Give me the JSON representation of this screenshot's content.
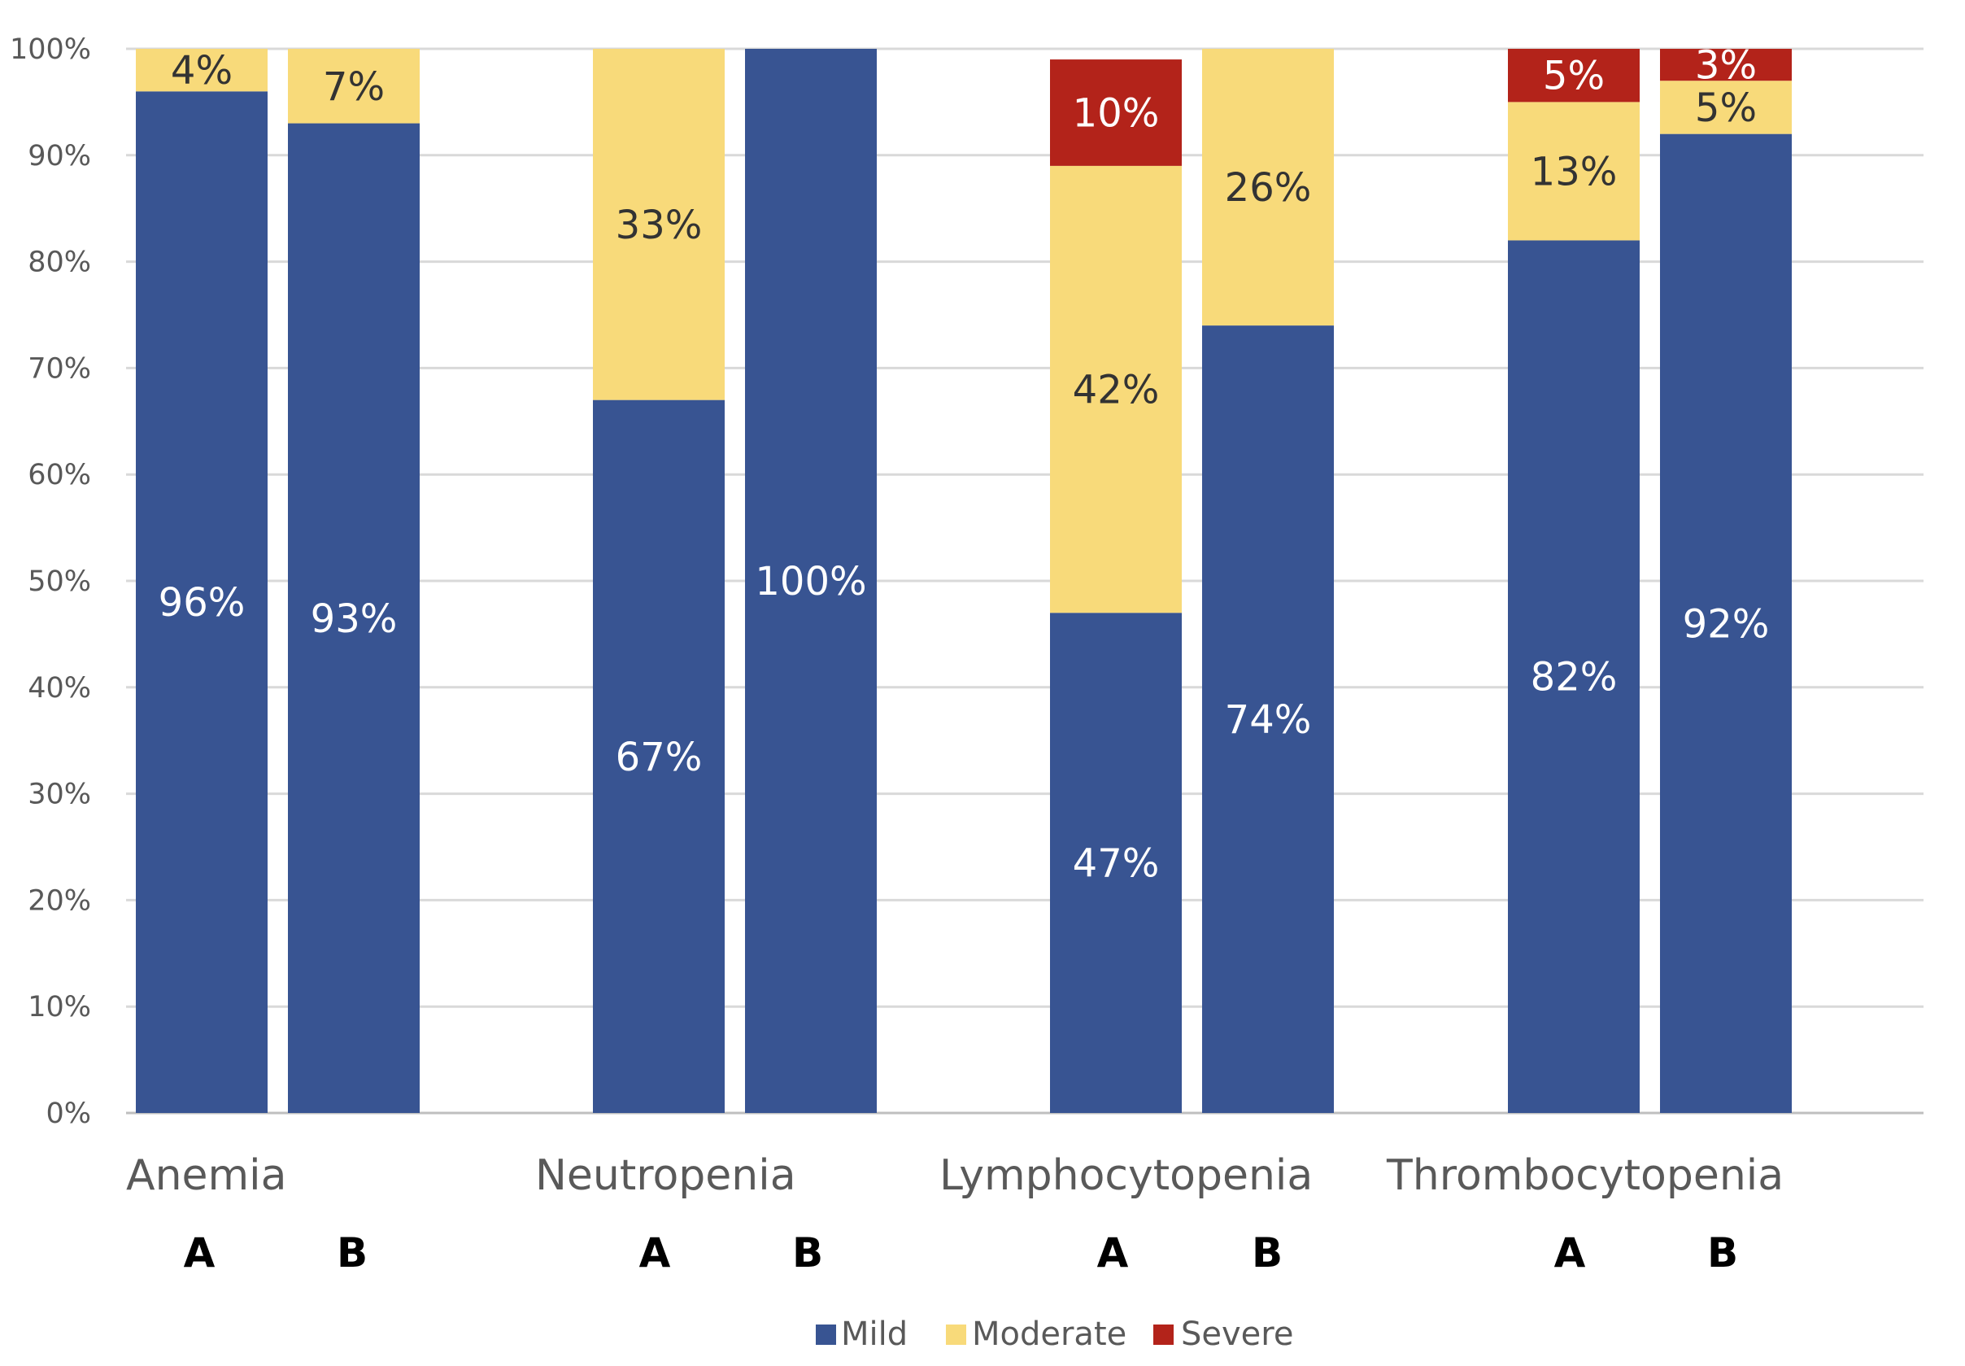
{
  "chart_data": {
    "type": "bar",
    "stacked": true,
    "percent": true,
    "title": "",
    "xlabel": "",
    "ylabel": "",
    "ylim": [
      0,
      100
    ],
    "yticks": [
      "0%",
      "10%",
      "20%",
      "30%",
      "40%",
      "50%",
      "60%",
      "70%",
      "80%",
      "90%",
      "100%"
    ],
    "groups": [
      "Anemia",
      "Neutropenia",
      "Lymphocytopenia",
      "Thrombocytopenia"
    ],
    "subgroups": [
      "A",
      "B"
    ],
    "categories": [
      "Anemia A",
      "Anemia B",
      "Neutropenia A",
      "Neutropenia B",
      "Lymphocytopenia A",
      "Lymphocytopenia B",
      "Thrombocytopenia A",
      "Thrombocytopenia B"
    ],
    "series": [
      {
        "name": "Mild",
        "color": "#385492",
        "label_color": "#ffffff",
        "values": [
          96,
          93,
          67,
          100,
          47,
          74,
          82,
          92
        ],
        "labels": [
          "96%",
          "93%",
          "67%",
          "100%",
          "47%",
          "74%",
          "82%",
          "92%"
        ]
      },
      {
        "name": "Moderate",
        "color": "#f8da7a",
        "label_color": "#333333",
        "values": [
          4,
          7,
          33,
          0,
          42,
          26,
          13,
          5
        ],
        "labels": [
          "4%",
          "7%",
          "33%",
          "",
          "42%",
          "26%",
          "13%",
          "5%"
        ]
      },
      {
        "name": "Severe",
        "color": "#b3231a",
        "label_color": "#ffffff",
        "values": [
          0,
          0,
          0,
          0,
          10,
          0,
          5,
          3
        ],
        "labels": [
          "",
          "",
          "",
          "",
          "10%",
          "",
          "5%",
          "3%"
        ]
      }
    ],
    "grid": true,
    "legend": "bottom-center"
  }
}
